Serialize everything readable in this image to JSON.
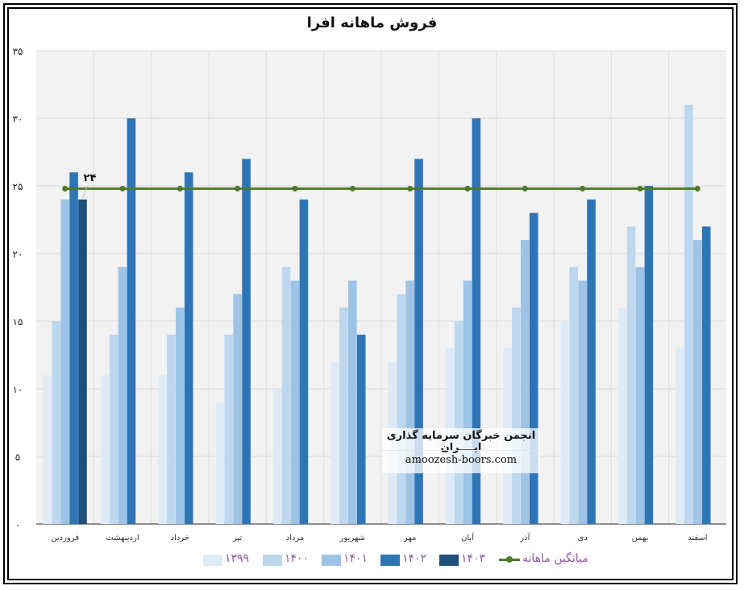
{
  "chart_data": {
    "type": "bar",
    "title": "فروش ماهانه افرا",
    "categories": [
      "فروردین",
      "اردیبهشت",
      "خرداد",
      "تیر",
      "مرداد",
      "شهریور",
      "مهر",
      "آبان",
      "آذر",
      "دی",
      "بهمن",
      "اسفند"
    ],
    "y_tick_labels": [
      "۰",
      "۵",
      "۱۰",
      "۱۵",
      "۲۰",
      "۲۵",
      "۳۰",
      "۳۵"
    ],
    "ylim": [
      0,
      35
    ],
    "y_tick_step": 5,
    "grid": true,
    "legend_position": "bottom",
    "series": [
      {
        "name": "۱۳۹۹",
        "color": "#deebf7",
        "values": [
          11,
          11,
          11,
          9,
          10,
          12,
          12,
          13,
          13,
          15,
          16,
          13
        ]
      },
      {
        "name": "۱۴۰۰",
        "color": "#bdd7ee",
        "values": [
          15,
          14,
          14,
          14,
          19,
          16,
          17,
          15,
          16,
          19,
          22,
          31
        ]
      },
      {
        "name": "۱۴۰۱",
        "color": "#9dc3e6",
        "values": [
          24,
          19,
          16,
          17,
          18,
          18,
          18,
          18,
          21,
          18,
          19,
          21
        ]
      },
      {
        "name": "۱۴۰۲",
        "color": "#2e75b6",
        "values": [
          26,
          30,
          26,
          27,
          24,
          14,
          27,
          30,
          23,
          24,
          25,
          22
        ]
      },
      {
        "name": "۱۴۰۳",
        "color": "#1f4e79",
        "values": [
          24,
          null,
          null,
          null,
          null,
          null,
          null,
          null,
          null,
          null,
          null,
          null
        ]
      }
    ],
    "average_line": {
      "name": "میانگین ماهانه",
      "color": "#4f7a28",
      "value": 24.8
    },
    "annotations": [
      {
        "label": "۲۴",
        "series": "۱۴۰۳",
        "category": "فروردین"
      }
    ]
  },
  "watermark": {
    "line1": "انجمن خبرگان سرمایه گذاری ایــــران",
    "line2": "amoozesh-boors.com"
  }
}
